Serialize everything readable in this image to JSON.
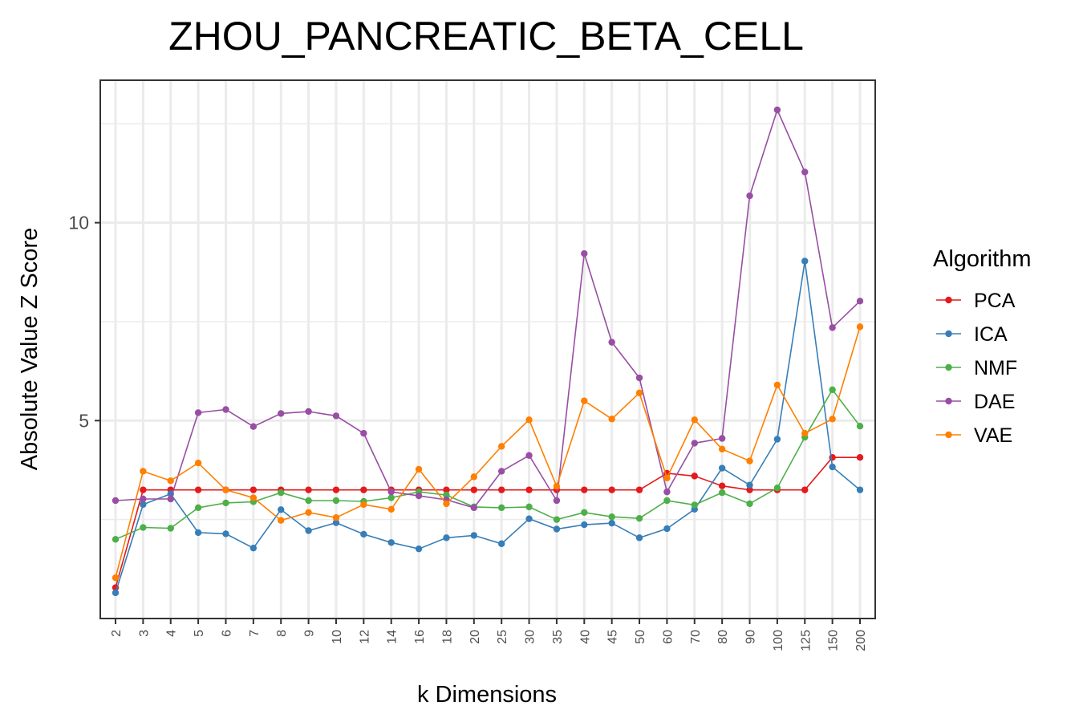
{
  "chart_data": {
    "type": "line",
    "title": "ZHOU_PANCREATIC_BETA_CELL",
    "xlabel": "k Dimensions",
    "ylabel": "Absolute Value Z Score",
    "categories": [
      "2",
      "3",
      "4",
      "5",
      "6",
      "7",
      "8",
      "9",
      "10",
      "12",
      "14",
      "16",
      "18",
      "20",
      "25",
      "30",
      "35",
      "40",
      "45",
      "50",
      "60",
      "70",
      "80",
      "90",
      "100",
      "125",
      "150",
      "200"
    ],
    "y_ticks": [
      "5",
      "10"
    ],
    "ylim": [
      0.0,
      13.6
    ],
    "grid": true,
    "legend_title": "Algorithm",
    "legend_position": "right",
    "series": [
      {
        "name": "PCA",
        "color": "#E41A1C",
        "values": [
          0.78,
          3.25,
          3.25,
          3.25,
          3.25,
          3.25,
          3.25,
          3.25,
          3.25,
          3.25,
          3.25,
          3.25,
          3.25,
          3.25,
          3.25,
          3.25,
          3.25,
          3.25,
          3.25,
          3.25,
          3.67,
          3.6,
          3.35,
          3.25,
          3.25,
          3.25,
          4.07,
          4.07
        ]
      },
      {
        "name": "ICA",
        "color": "#377EB8",
        "values": [
          0.65,
          2.88,
          3.15,
          2.17,
          2.14,
          1.78,
          2.75,
          2.22,
          2.42,
          2.13,
          1.92,
          1.76,
          2.04,
          2.1,
          1.89,
          2.52,
          2.26,
          2.37,
          2.41,
          2.04,
          2.27,
          2.76,
          3.8,
          3.37,
          4.53,
          9.03,
          3.83,
          3.25
        ]
      },
      {
        "name": "NMF",
        "color": "#4DAF4A",
        "values": [
          2.0,
          2.3,
          2.28,
          2.8,
          2.92,
          2.95,
          3.18,
          2.98,
          2.98,
          2.96,
          3.05,
          3.2,
          3.12,
          2.82,
          2.8,
          2.82,
          2.5,
          2.68,
          2.57,
          2.53,
          2.98,
          2.87,
          3.18,
          2.9,
          3.3,
          4.58,
          5.78,
          4.86
        ]
      },
      {
        "name": "DAE",
        "color": "#984EA3",
        "values": [
          2.98,
          3.02,
          3.02,
          5.2,
          5.28,
          4.85,
          5.18,
          5.23,
          5.12,
          4.68,
          3.2,
          3.1,
          3.0,
          2.8,
          3.72,
          4.12,
          2.98,
          9.22,
          6.98,
          6.08,
          3.2,
          4.43,
          4.55,
          10.68,
          12.85,
          11.28,
          7.35,
          8.02
        ]
      },
      {
        "name": "VAE",
        "color": "#FF7F00",
        "values": [
          1.03,
          3.72,
          3.48,
          3.93,
          3.25,
          3.05,
          2.48,
          2.68,
          2.55,
          2.88,
          2.76,
          3.77,
          2.9,
          3.58,
          4.35,
          5.02,
          3.34,
          5.5,
          5.04,
          5.7,
          3.55,
          5.02,
          4.28,
          3.98,
          5.9,
          4.68,
          5.04,
          7.37
        ]
      }
    ]
  }
}
